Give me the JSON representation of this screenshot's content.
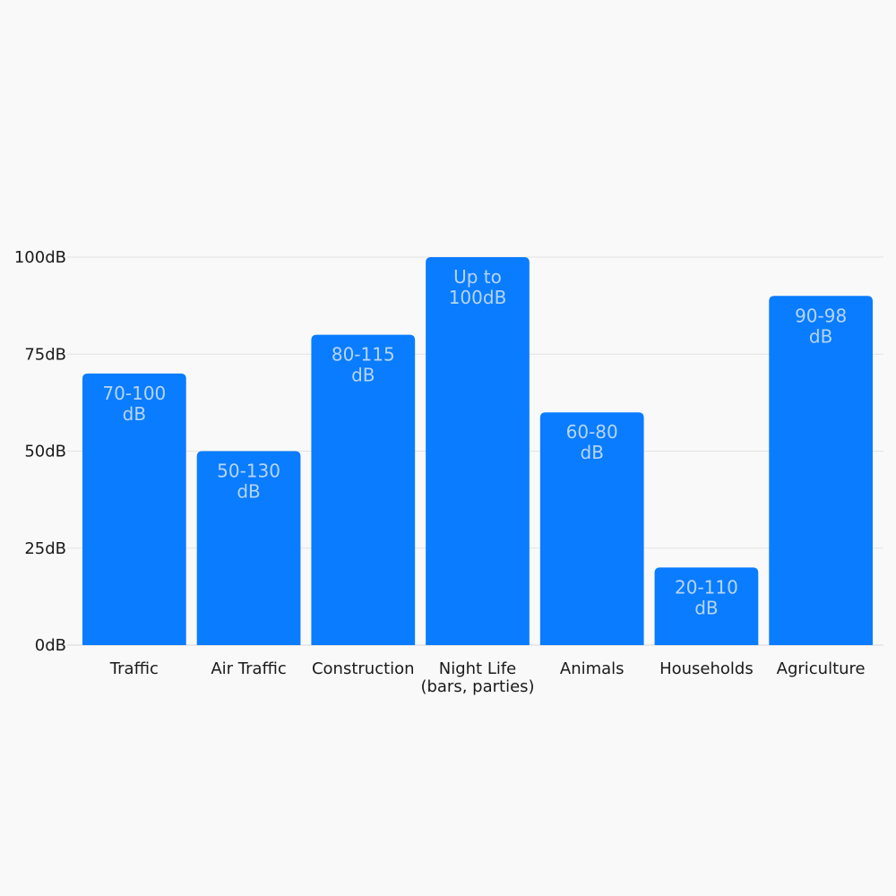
{
  "chart_data": {
    "type": "bar",
    "title": "",
    "xlabel": "",
    "ylabel": "",
    "ylim": [
      0,
      100
    ],
    "yticks": [
      {
        "value": 0,
        "label": "0dB"
      },
      {
        "value": 25,
        "label": "25dB"
      },
      {
        "value": 50,
        "label": "50dB"
      },
      {
        "value": 75,
        "label": "75dB"
      },
      {
        "value": 100,
        "label": "100dB"
      }
    ],
    "grid": true,
    "legend": "none",
    "bar_color": "#0a7cff",
    "categories": [
      [
        "Traffic"
      ],
      [
        "Air Traffic"
      ],
      [
        "Construction"
      ],
      [
        "Night Life",
        "(bars, parties)"
      ],
      [
        "Animals"
      ],
      [
        "Households"
      ],
      [
        "Agriculture"
      ]
    ],
    "values": [
      70,
      50,
      80,
      100,
      60,
      20,
      90
    ],
    "data_labels": [
      [
        "70-100",
        "dB"
      ],
      [
        "50-130",
        "dB"
      ],
      [
        "80-115",
        "dB"
      ],
      [
        "Up to",
        "100dB"
      ],
      [
        "60-80",
        "dB"
      ],
      [
        "20-110",
        "dB"
      ],
      [
        "90-98",
        "dB"
      ]
    ]
  }
}
